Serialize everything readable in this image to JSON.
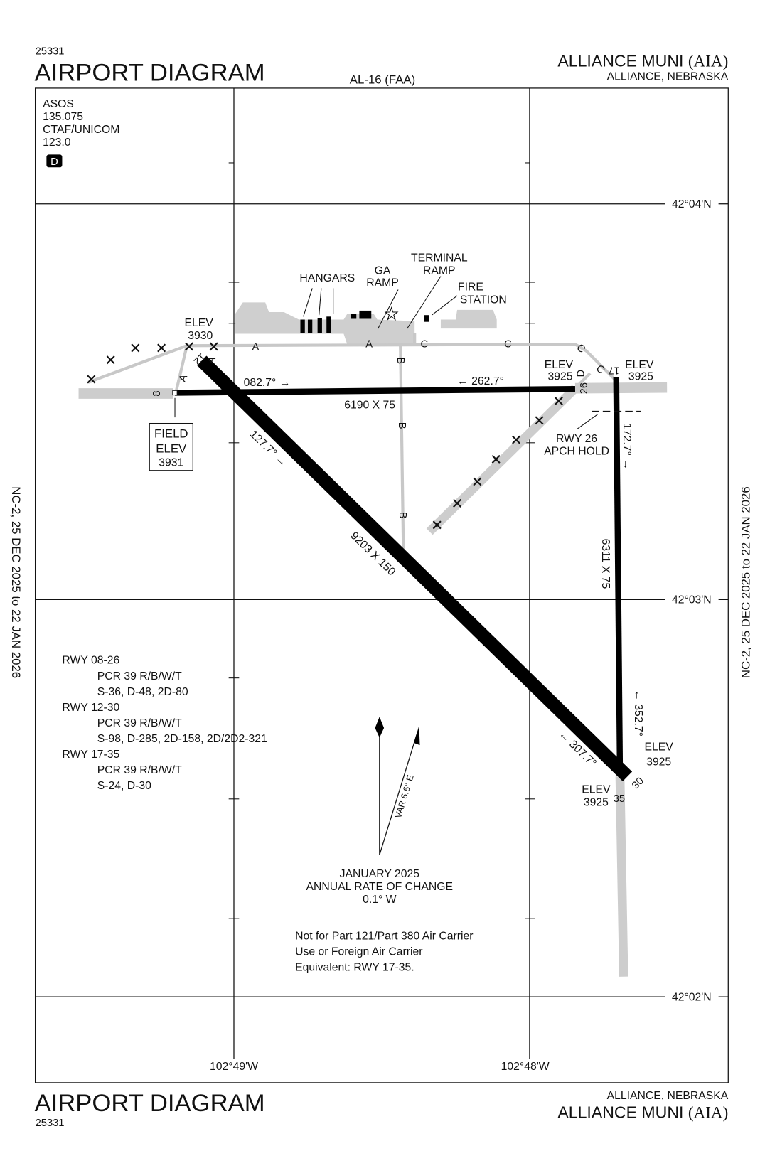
{
  "header": {
    "chart_number": "25331",
    "title": "AIRPORT DIAGRAM",
    "procedure_id": "AL-16 (FAA)",
    "airport_name": "ALLIANCE MUNI",
    "airport_id": "(AIA)",
    "location": "ALLIANCE, NEBRASKA"
  },
  "footer": {
    "chart_number": "25331",
    "title": "AIRPORT DIAGRAM",
    "airport_name": "ALLIANCE MUNI",
    "airport_id": "(AIA)",
    "location": "ALLIANCE, NEBRASKA"
  },
  "side_note": "NC-2,  25 DEC 2025  to  22 JAN 2026",
  "comms": [
    "ASOS",
    "135.075",
    "CTAF/UNICOM",
    "123.0"
  ],
  "d_badge": "D",
  "latitudes": [
    "42°04'N",
    "42°03'N",
    "42°02'N"
  ],
  "longitudes": [
    "102°49'W",
    "102°48'W"
  ],
  "labels": {
    "hangars": "HANGARS",
    "ga_ramp": [
      "GA",
      "RAMP"
    ],
    "terminal_ramp": [
      "TERMINAL",
      "RAMP"
    ],
    "fire_station": [
      "FIRE",
      "STATION"
    ],
    "elev_word": "ELEV",
    "elev_12": "3930",
    "elev_26": "3925",
    "elev_17": "3925",
    "elev_35": "3925",
    "elev_30": "3925",
    "field_elev": [
      "FIELD",
      "ELEV",
      "3931"
    ],
    "hdg_08": "082.7°",
    "hdg_26": "262.7°",
    "dim_0826": "6190 X 75",
    "hdg_12": "127.7°",
    "dim_1230": "9203 X 150",
    "hdg_30": "307.7°",
    "hdg_17": "172.7°",
    "dim_1735": "6311 X 75",
    "hdg_35": "352.7°",
    "apch_hold": [
      "RWY 26",
      "APCH HOLD"
    ],
    "rwy_ends": {
      "r8": "8",
      "r26": "26",
      "r12": "12",
      "r30": "30",
      "r17": "17",
      "r35": "35"
    },
    "taxiways": {
      "a": "A",
      "b": "B",
      "c": "C",
      "d": "D"
    },
    "arrow_right": "→",
    "arrow_left": "←"
  },
  "runway_info": [
    {
      "rwy": "RWY  08-26",
      "lines": [
        "PCR 39 R/B/W/T",
        "S-36, D-48, 2D-80"
      ]
    },
    {
      "rwy": "RWY  12-30",
      "lines": [
        "PCR 39 R/B/W/T",
        " S-98, D-285, 2D-158, 2D/2D2-321"
      ]
    },
    {
      "rwy": "RWY  17-35",
      "lines": [
        "PCR 39 R/B/W/T",
        "S-24, D-30"
      ]
    }
  ],
  "magnetic": {
    "variation": "VAR 6.6° E",
    "date": "JANUARY 2025",
    "rate_label": "ANNUAL RATE OF CHANGE",
    "rate": "0.1° W"
  },
  "note": [
    "Not for Part 121/Part 380 Air Carrier",
    "Use or Foreign Air Carrier",
    "Equivalent: RWY 17-35."
  ]
}
